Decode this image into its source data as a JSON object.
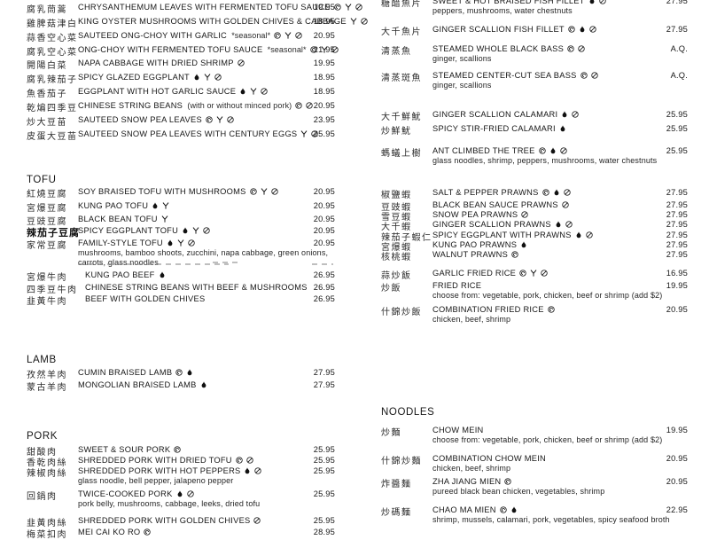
{
  "page": {
    "background": "#ffffff",
    "text_color": "#1b1b1b",
    "currency_note": "A.Q."
  },
  "icon_legend": {
    "swirl": "swirl-circle-icon",
    "flame": "flame-icon",
    "glass": "y-glass-icon",
    "crossed": "crossed-circle-icon"
  },
  "columns": {
    "left": {
      "sections": [
        {
          "id": "greens",
          "header": null,
          "items": [
            {
              "cn": "腐乳茼蒿",
              "en": "CHRYSANTHEMUM LEAVES WITH FERMENTED TOFU SAUCE",
              "icons": [
                "swirl",
                "glass",
                "crossed"
              ],
              "price": "19.95"
            },
            {
              "cn": "雞脾菇津白",
              "en": "KING OYSTER MUSHROOMS WITH GOLDEN CHIVES & CABBAGE",
              "icons": [
                "glass",
                "crossed"
              ],
              "price": "18.95"
            },
            {
              "cn": "蒜香空心菜",
              "en": "SAUTEED ONG-CHOY WITH GARLIC",
              "note": "*seasonal*",
              "icons": [
                "swirl",
                "glass",
                "crossed"
              ],
              "price": "20.95"
            },
            {
              "cn": "腐乳空心菜",
              "en": "ONG-CHOY WITH FERMENTED TOFU SAUCE",
              "note": "*seasonal*",
              "icons": [
                "swirl",
                "glass",
                "crossed"
              ],
              "price": "21.95"
            },
            {
              "cn": "開陽白菜",
              "en": "NAPA CABBAGE WITH DRIED SHRIMP",
              "icons": [
                "crossed"
              ],
              "price": "19.95"
            },
            {
              "cn": "腐乳辣茄子",
              "en": "SPICY GLAZED EGGPLANT",
              "icons": [
                "flame",
                "glass",
                "crossed"
              ],
              "price": "18.95"
            },
            {
              "cn": "魚香茄子",
              "en": "EGGPLANT WITH HOT GARLIC SAUCE",
              "icons": [
                "flame",
                "glass",
                "crossed"
              ],
              "price": "18.95"
            },
            {
              "cn": "乾煸四季豆",
              "en": "CHINESE STRING BEANS",
              "note": "(with or without minced pork)",
              "icons": [
                "swirl",
                "crossed"
              ],
              "price": "20.95"
            },
            {
              "cn": "炒大豆苗",
              "en": "SAUTEED SNOW PEA LEAVES",
              "icons": [
                "swirl",
                "glass",
                "crossed"
              ],
              "price": "23.95"
            },
            {
              "cn": "皮蛋大豆苗",
              "en": "SAUTEED SNOW PEA LEAVES WITH CENTURY EGGS",
              "icons": [
                "glass",
                "crossed"
              ],
              "price": "25.95"
            }
          ]
        },
        {
          "id": "tofu",
          "header": "TOFU",
          "items": [
            {
              "cn": "紅燒豆腐",
              "en": "SOY BRAISED TOFU WITH MUSHROOMS",
              "icons": [
                "swirl",
                "glass",
                "crossed"
              ],
              "price": "20.95"
            },
            {
              "cn": "宮爆豆腐",
              "en": "KUNG PAO TOFU",
              "icons": [
                "flame",
                "glass"
              ],
              "price": "20.95"
            },
            {
              "cn": "豆豉豆腐",
              "en": "BLACK BEAN TOFU",
              "icons": [
                "glass"
              ],
              "price": "20.95"
            },
            {
              "cn": "辣茄子豆腐",
              "en": "SPICY EGGPLANT TOFU",
              "icons": [
                "flame",
                "glass",
                "crossed"
              ],
              "price": "20.95",
              "bold": true
            },
            {
              "cn": "家常豆腐",
              "en": "FAMILY-STYLE TOFU",
              "icons": [
                "flame",
                "glass",
                "crossed"
              ],
              "price": "20.95",
              "desc": "mushrooms, bamboo shoots, zucchini, napa cabbage, green onions, carrots, glass noodles"
            }
          ]
        },
        {
          "id": "beef",
          "header": null,
          "items": [
            {
              "cn": "宮爆牛肉",
              "en": "KUNG PAO BEEF",
              "icons": [
                "flame"
              ],
              "price": "26.95"
            },
            {
              "cn": "四季豆牛肉",
              "en": "CHINESE STRING BEANS WITH BEEF & MUSHROOMS",
              "icons": [],
              "price": "26.95"
            },
            {
              "cn": "韭黃牛肉",
              "en": "BEEF WITH GOLDEN CHIVES",
              "icons": [],
              "price": "26.95"
            }
          ]
        },
        {
          "id": "lamb",
          "header": "LAMB",
          "items": [
            {
              "cn": "孜然羊肉",
              "en": "CUMIN BRAISED LAMB",
              "icons": [
                "swirl",
                "flame"
              ],
              "price": "27.95"
            },
            {
              "cn": "蒙古羊肉",
              "en": "MONGOLIAN BRAISED LAMB",
              "icons": [
                "flame"
              ],
              "price": "27.95"
            }
          ]
        },
        {
          "id": "pork",
          "header": "PORK",
          "items": [
            {
              "cn": "甜酸肉",
              "en": "SWEET & SOUR PORK",
              "icons": [
                "swirl"
              ],
              "price": "25.95"
            },
            {
              "cn": "香乾肉絲",
              "en": "SHREDDED PORK WITH DRIED TOFU",
              "icons": [
                "swirl",
                "crossed"
              ],
              "price": "25.95"
            },
            {
              "cn": "辣椒肉絲",
              "en": "SHREDDED PORK WITH HOT PEPPERS",
              "icons": [
                "flame",
                "crossed"
              ],
              "price": "25.95",
              "desc": "glass noodle, bell pepper, jalapeno pepper"
            },
            {
              "cn": "回鍋肉",
              "en": "TWICE-COOKED PORK",
              "icons": [
                "flame",
                "crossed"
              ],
              "price": "25.95",
              "desc": "pork belly, mushrooms, cabbage, leeks, dried tofu"
            },
            {
              "cn": "韭黃肉絲",
              "en": "SHREDDED PORK WITH GOLDEN CHIVES",
              "icons": [
                "crossed"
              ],
              "price": "25.95"
            },
            {
              "cn": "梅菜扣肉",
              "en": "MEI CAI KO RO",
              "icons": [
                "swirl"
              ],
              "price": "28.95"
            }
          ]
        }
      ]
    },
    "right": {
      "sections": [
        {
          "id": "fish",
          "header": null,
          "items": [
            {
              "cn": "糖醋魚片",
              "en": "SWEET & HOT BRAISED FISH FILLET",
              "icons": [
                "flame",
                "crossed"
              ],
              "price": "27.95",
              "desc": "peppers, mushrooms, water chestnuts"
            },
            {
              "cn": "大千魚片",
              "en": "GINGER SCALLION FISH FILLET",
              "icons": [
                "swirl",
                "flame",
                "crossed"
              ],
              "price": "27.95"
            },
            {
              "cn": "清蒸魚",
              "en": "STEAMED WHOLE BLACK BASS",
              "icons": [
                "swirl",
                "crossed"
              ],
              "price": "A.Q.",
              "desc": "ginger, scallions"
            },
            {
              "cn": "清蒸斑魚",
              "en": "STEAMED CENTER-CUT SEA BASS",
              "icons": [
                "swirl",
                "crossed"
              ],
              "price": "A.Q.",
              "desc": "ginger, scallions"
            }
          ]
        },
        {
          "id": "calamari",
          "header": null,
          "items": [
            {
              "cn": "大千鮮魷",
              "en": "GINGER SCALLION CALAMARI",
              "icons": [
                "flame",
                "crossed"
              ],
              "price": "25.95"
            },
            {
              "cn": "炒鮮魷",
              "en": "SPICY STIR-FRIED CALAMARI",
              "icons": [
                "flame"
              ],
              "price": "25.95"
            },
            {
              "cn": "螞蟻上樹",
              "en": "ANT CLIMBED THE TREE",
              "icons": [
                "swirl",
                "flame",
                "crossed"
              ],
              "price": "25.95",
              "desc": "glass noodles, shrimp, peppers, mushrooms, water chestnuts"
            }
          ]
        },
        {
          "id": "prawns",
          "header": null,
          "items": [
            {
              "cn": "椒鹽蝦",
              "en": "SALT & PEPPER PRAWNS",
              "icons": [
                "swirl",
                "flame",
                "crossed"
              ],
              "price": "27.95"
            },
            {
              "cn": "豆豉蝦",
              "en": "BLACK BEAN SAUCE PRAWNS",
              "icons": [
                "crossed"
              ],
              "price": "27.95"
            },
            {
              "cn": "雪豆蝦",
              "en": "SNOW PEA PRAWNS",
              "icons": [
                "crossed"
              ],
              "price": "27.95"
            },
            {
              "cn": "大千蝦",
              "en": "GINGER SCALLION PRAWNS",
              "icons": [
                "flame",
                "crossed"
              ],
              "price": "27.95"
            },
            {
              "cn": "辣茄子蝦仁",
              "en": "SPICY EGGPLANT WITH PRAWNS",
              "icons": [
                "flame",
                "crossed"
              ],
              "price": "27.95"
            },
            {
              "cn": "宮爆蝦",
              "en": "KUNG PAO PRAWNS",
              "icons": [
                "flame"
              ],
              "price": "27.95"
            },
            {
              "cn": "核桃蝦",
              "en": "WALNUT PRAWNS",
              "icons": [
                "swirl"
              ],
              "price": "27.95"
            }
          ]
        },
        {
          "id": "rice",
          "header": null,
          "items": [
            {
              "cn": "蒜炒飯",
              "en": "GARLIC FRIED RICE",
              "icons": [
                "swirl",
                "glass",
                "crossed"
              ],
              "price": "16.95"
            },
            {
              "cn": "炒飯",
              "en": "FRIED RICE",
              "icons": [],
              "price": "19.95",
              "desc": "choose from: vegetable, pork, chicken, beef or shrimp (add $2)"
            },
            {
              "cn": "什錦炒飯",
              "en": "COMBINATION FRIED RICE",
              "icons": [
                "swirl"
              ],
              "price": "20.95",
              "desc": "chicken, beef, shrimp"
            }
          ]
        },
        {
          "id": "noodles",
          "header": "NOODLES",
          "items": [
            {
              "cn": "炒麵",
              "en": "CHOW MEIN",
              "icons": [],
              "price": "19.95",
              "desc": "choose from: vegetable, pork, chicken, beef or shrimp (add $2)"
            },
            {
              "cn": "什錦炒麵",
              "en": "COMBINATION CHOW MEIN",
              "icons": [],
              "price": "20.95",
              "desc": "chicken, beef, shrimp"
            },
            {
              "cn": "炸醬麵",
              "en": "ZHA JIANG MIEN",
              "icons": [
                "swirl"
              ],
              "price": "20.95",
              "desc": "pureed black bean chicken, vegetables, shrimp"
            },
            {
              "cn": "炒碼麵",
              "en": "CHAO MA MIEN",
              "icons": [
                "swirl",
                "flame"
              ],
              "price": "22.95",
              "desc": "shrimp, mussels, calamari, pork, vegetables, spicy seafood broth"
            }
          ]
        }
      ]
    }
  }
}
